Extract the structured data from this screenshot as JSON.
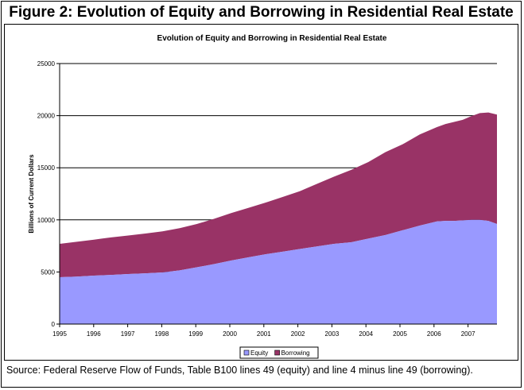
{
  "figure": {
    "title": "Figure 2: Evolution of  Equity and Borrowing in Residential Real Estate",
    "caption": "Source: Federal Reserve Flow of Funds, Table B100 lines 49 (equity) and line 4 minus line 49 (borrowing)."
  },
  "chart_data": {
    "type": "area",
    "stacked": true,
    "title": "Evolution of Equity and Borrowing in Residential Real Estate",
    "xlabel": "",
    "ylabel": "Billions of Current Dollars",
    "ylim": [
      0,
      25000
    ],
    "yticks": [
      0,
      5000,
      10000,
      15000,
      20000,
      25000
    ],
    "grid": true,
    "legend_position": "bottom",
    "x_tick_labels": [
      "1995",
      "1996",
      "1997",
      "1998",
      "1999",
      "2000",
      "2001",
      "2002",
      "2003",
      "2004",
      "2005",
      "2006",
      "2007"
    ],
    "x": [
      1995.0,
      1995.5,
      1996.0,
      1996.5,
      1997.0,
      1997.5,
      1998.0,
      1998.5,
      1999.0,
      1999.5,
      2000.0,
      2000.5,
      2001.0,
      2001.5,
      2002.0,
      2002.5,
      2003.0,
      2003.5,
      2004.0,
      2004.5,
      2005.0,
      2005.5,
      2006.0,
      2006.25,
      2006.5,
      2006.75,
      2007.0,
      2007.25,
      2007.5,
      2007.75
    ],
    "series": [
      {
        "name": "Equity",
        "color": "#9999ff",
        "values": [
          4500,
          4550,
          4650,
          4720,
          4800,
          4870,
          4950,
          5150,
          5450,
          5750,
          6100,
          6400,
          6700,
          6950,
          7200,
          7450,
          7700,
          7850,
          8200,
          8550,
          9000,
          9450,
          9850,
          9900,
          9900,
          9950,
          10000,
          10000,
          9900,
          9600
        ]
      },
      {
        "name": "Borrowing",
        "color": "#993366",
        "values": [
          3200,
          3350,
          3450,
          3600,
          3700,
          3820,
          3950,
          4050,
          4150,
          4350,
          4550,
          4750,
          4950,
          5250,
          5550,
          6000,
          6450,
          6950,
          7350,
          7950,
          8250,
          8750,
          9050,
          9300,
          9500,
          9650,
          9950,
          10250,
          10400,
          10500
        ]
      }
    ]
  }
}
